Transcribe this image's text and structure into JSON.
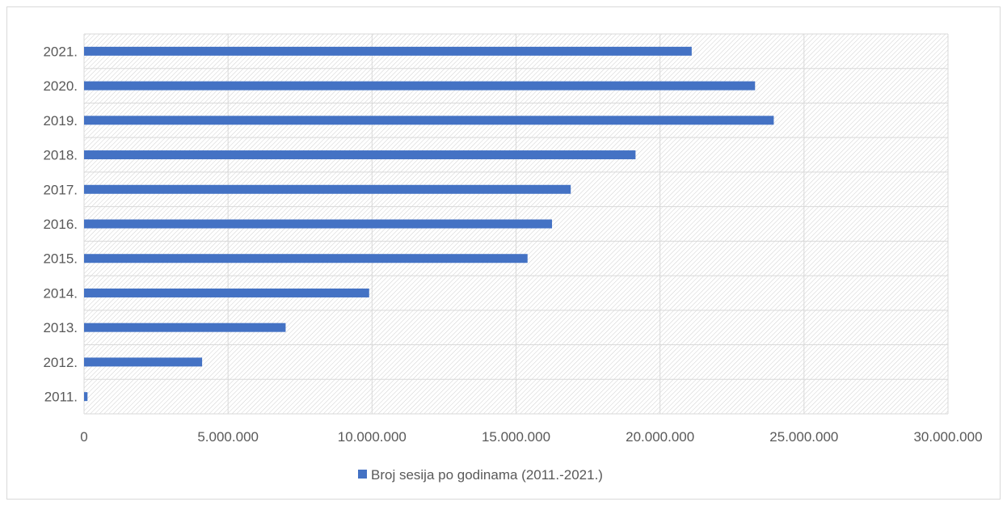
{
  "chart_data": {
    "type": "bar",
    "orientation": "horizontal",
    "categories": [
      "2011.",
      "2012.",
      "2013.",
      "2014.",
      "2015.",
      "2016.",
      "2017.",
      "2018.",
      "2019.",
      "2020.",
      "2021."
    ],
    "series": [
      {
        "name": "Broj sesija po godinama (2011.-2021.)",
        "values": [
          120000,
          4100000,
          7000000,
          9900000,
          15400000,
          16250000,
          16900000,
          19150000,
          23950000,
          23300000,
          21100000
        ]
      }
    ],
    "xlim": [
      0,
      30000000
    ],
    "x_ticks": [
      0,
      5000000,
      10000000,
      15000000,
      20000000,
      25000000,
      30000000
    ],
    "x_tick_labels": [
      "0",
      "5.000.000",
      "10.000.000",
      "15.000.000",
      "20.000.000",
      "25.000.000",
      "30.000.000"
    ],
    "title": "",
    "xlabel": "",
    "ylabel": "",
    "grid": true,
    "plot_background": "diagonal-hatch",
    "legend_position": "bottom",
    "bar_color": "#4472C4"
  }
}
